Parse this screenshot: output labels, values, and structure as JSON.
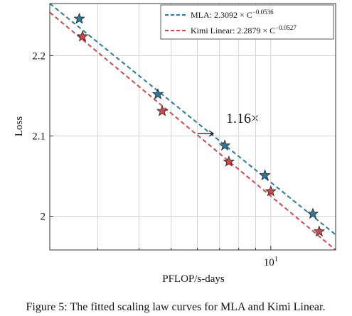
{
  "chart_data": {
    "type": "scatter",
    "xlabel": "PFLOP/s-days",
    "ylabel": "Loss",
    "caption": "Figure 5: The fitted scaling law curves for MLA and Kimi Linear.",
    "annotation": "1.16×",
    "log_x": true,
    "grid": true,
    "legend_position": "upper right",
    "xlim": [
      2.15,
      15.7
    ],
    "ylim": [
      1.958,
      2.265
    ],
    "xticks": [
      {
        "value": 10,
        "label": "10",
        "exponent": "1"
      }
    ],
    "xminor_ticks": [
      3,
      4,
      5,
      6,
      7,
      8,
      9
    ],
    "yticks": [
      2.0,
      2.1,
      2.2
    ],
    "series": [
      {
        "name": "MLA: 2.3092 × C",
        "name_exponent": "−0.0536",
        "color": "#2b7a9b",
        "x": [
          2.64,
          4.56,
          7.26,
          9.6,
          13.4
        ],
        "values": [
          2.246,
          2.152,
          2.088,
          2.051,
          2.003
        ],
        "fit_x": [
          2.15,
          15.7
        ],
        "fit_values": [
          2.265,
          1.977
        ]
      },
      {
        "name": "Kimi Linear: 2.2879 × C",
        "name_exponent": "−0.0527",
        "color": "#d0484f",
        "x": [
          2.7,
          4.7,
          7.47,
          10,
          14.0
        ],
        "values": [
          2.224,
          2.131,
          2.068,
          2.031,
          1.981
        ],
        "fit_x": [
          2.15,
          15.7
        ],
        "fit_values": [
          2.254,
          1.958
        ]
      }
    ]
  }
}
